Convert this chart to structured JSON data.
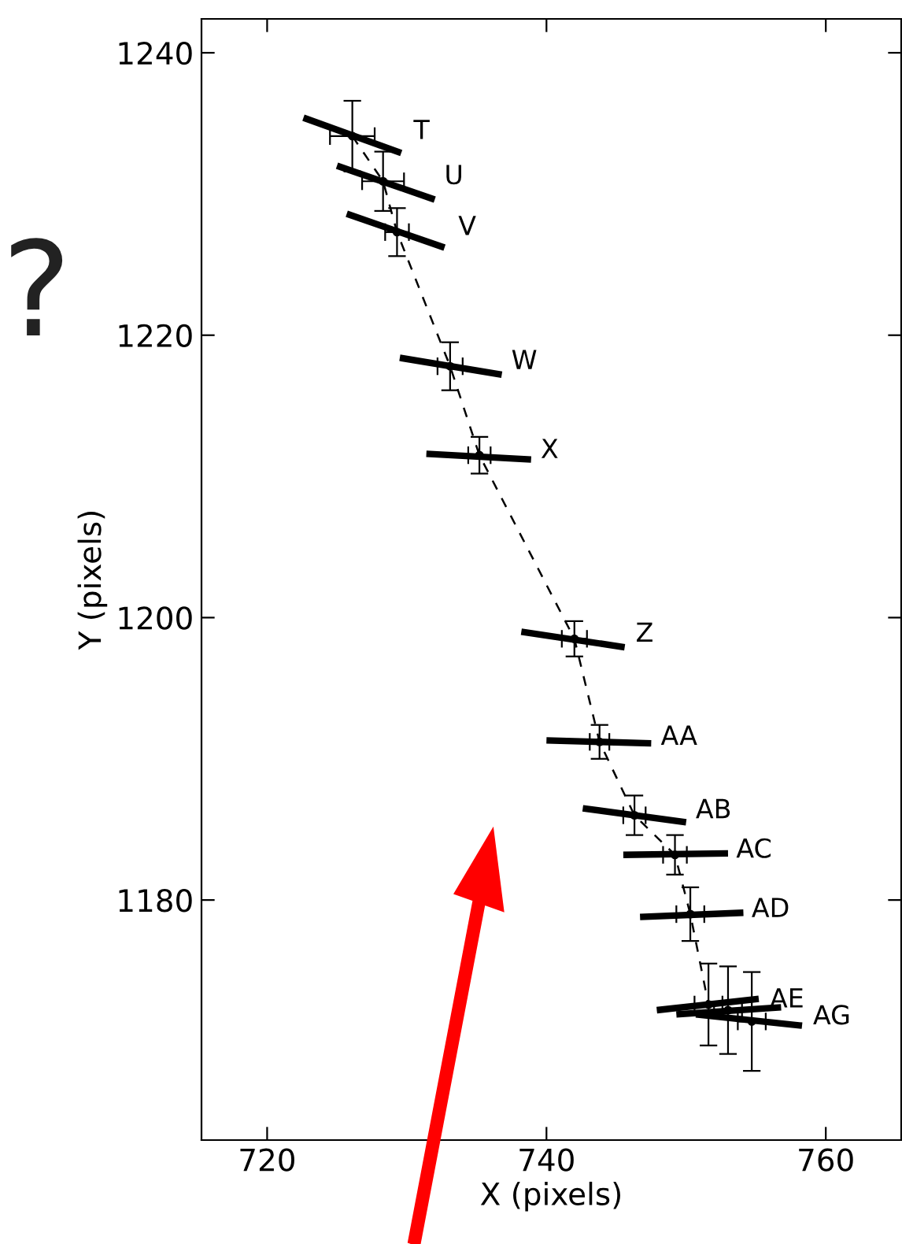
{
  "chart_data": {
    "type": "line",
    "xlabel": "X (pixels)",
    "ylabel": "Y (pixels)",
    "xlim": [
      715.3,
      765.4
    ],
    "ylim": [
      1163.0,
      1242.4
    ],
    "xticks": [
      720,
      740,
      760
    ],
    "yticks": [
      1180,
      1200,
      1220,
      1240
    ],
    "grid": false,
    "legend": false,
    "series": [
      {
        "color": "#000000",
        "marker": "circle",
        "line_style": "dashed",
        "x": [
          726.1,
          728.3,
          729.3,
          733.1,
          735.2,
          742.0,
          743.8,
          746.3,
          749.2,
          750.3,
          751.6,
          753.0,
          754.7
        ],
        "values": [
          1234.1,
          1230.9,
          1227.3,
          1217.8,
          1211.5,
          1198.5,
          1191.2,
          1186.0,
          1183.2,
          1179.0,
          1172.6,
          1172.2,
          1171.4
        ],
        "errors": [
          2.5,
          2.1,
          1.7,
          1.7,
          1.3,
          1.25,
          1.2,
          1.4,
          1.4,
          1.9,
          2.9,
          3.1,
          3.5
        ],
        "xerrors": [
          1.6,
          1.5,
          0.85,
          0.9,
          0.8,
          0.9,
          0.7,
          0.8,
          0.85,
          1.0,
          1.0,
          1.0,
          1.0
        ]
      },
      {
        "color": "#000000",
        "marker": "none",
        "line_style": "solid",
        "x": [
          722.6,
          729.6
        ],
        "values": [
          1235.4,
          1232.9
        ]
      },
      {
        "color": "#000000",
        "marker": "none",
        "line_style": "solid",
        "x": [
          725.0,
          732.0
        ],
        "values": [
          1232.0,
          1229.6
        ]
      },
      {
        "color": "#000000",
        "marker": "none",
        "line_style": "solid",
        "x": [
          725.7,
          732.7
        ],
        "values": [
          1228.6,
          1226.2
        ]
      },
      {
        "color": "#000000",
        "marker": "none",
        "line_style": "solid",
        "x": [
          729.5,
          736.8
        ],
        "values": [
          1218.4,
          1217.2
        ]
      },
      {
        "color": "#000000",
        "marker": "none",
        "line_style": "solid",
        "x": [
          731.4,
          738.9
        ],
        "values": [
          1211.6,
          1211.2
        ]
      },
      {
        "color": "#000000",
        "marker": "none",
        "line_style": "solid",
        "x": [
          738.2,
          745.6
        ],
        "values": [
          1199.0,
          1197.9
        ]
      },
      {
        "color": "#000000",
        "marker": "none",
        "line_style": "solid",
        "x": [
          740.0,
          747.5
        ],
        "values": [
          1191.3,
          1191.1
        ]
      },
      {
        "color": "#000000",
        "marker": "none",
        "line_style": "solid",
        "x": [
          742.6,
          750.0
        ],
        "values": [
          1186.5,
          1185.5
        ]
      },
      {
        "color": "#000000",
        "marker": "none",
        "line_style": "solid",
        "x": [
          745.5,
          753.0
        ],
        "values": [
          1183.2,
          1183.3
        ]
      },
      {
        "color": "#000000",
        "marker": "none",
        "line_style": "solid",
        "x": [
          746.7,
          754.1
        ],
        "values": [
          1178.8,
          1179.1
        ]
      },
      {
        "color": "#000000",
        "marker": "none",
        "line_style": "solid",
        "x": [
          747.9,
          755.2
        ],
        "values": [
          1172.2,
          1173.0
        ]
      },
      {
        "color": "#000000",
        "marker": "none",
        "line_style": "solid",
        "x": [
          749.3,
          756.8
        ],
        "values": [
          1171.9,
          1172.4
        ]
      },
      {
        "color": "#000000",
        "marker": "none",
        "line_style": "solid",
        "x": [
          750.7,
          758.3
        ],
        "values": [
          1171.9,
          1171.1
        ]
      }
    ],
    "annotations": [
      {
        "text": "T",
        "x": 726.1,
        "y": 1234.1
      },
      {
        "text": "U",
        "x": 728.3,
        "y": 1230.9
      },
      {
        "text": "V",
        "x": 729.3,
        "y": 1227.3
      },
      {
        "text": "W",
        "x": 733.1,
        "y": 1217.8
      },
      {
        "text": "X",
        "x": 735.2,
        "y": 1211.5
      },
      {
        "text": "Z",
        "x": 742.0,
        "y": 1198.5
      },
      {
        "text": "AA",
        "x": 743.8,
        "y": 1191.2
      },
      {
        "text": "AB",
        "x": 746.3,
        "y": 1186.0
      },
      {
        "text": "AC",
        "x": 749.2,
        "y": 1183.2
      },
      {
        "text": "AD",
        "x": 750.3,
        "y": 1179.0
      },
      {
        "text": "AE",
        "x": 751.6,
        "y": 1172.6
      },
      {
        "text": "AG",
        "x": 754.7,
        "y": 1171.4
      },
      "?"
    ]
  }
}
